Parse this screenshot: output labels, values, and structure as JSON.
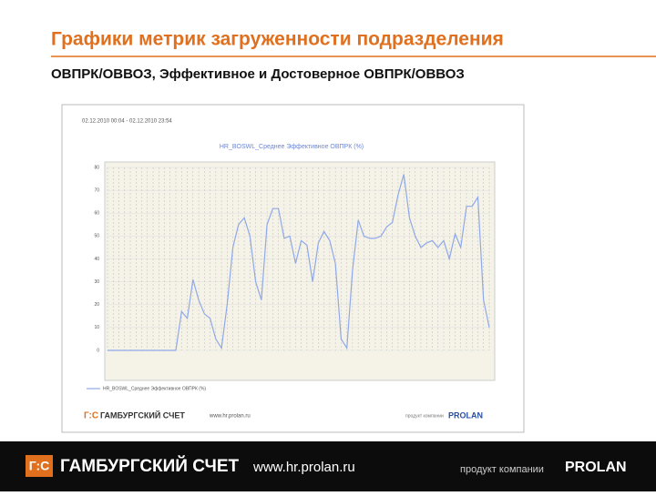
{
  "header": {
    "title": "Графики метрик загруженности подразделения",
    "subtitle": "ОВПРК/ОВВОЗ, Эффективное и Достоверное ОВПРК/ОВВОЗ"
  },
  "footer": {
    "brand": "ГАМБУРГСКИЙ СЧЕТ",
    "url": "www.hr.prolan.ru",
    "company_prefix": "продукт компании",
    "company": "PROLAN",
    "logo": "Г:С"
  },
  "chart_data": {
    "type": "line",
    "title": "HR_BOSWL_Среднее Эффективное ОВПРК (%)",
    "subtitle": "02.12.2010 00:04 - 02.12.2010 23:54",
    "categories": [
      null,
      null,
      null,
      null,
      null,
      null,
      null,
      null,
      null,
      null,
      null,
      null,
      null,
      null,
      null,
      null,
      null,
      null,
      null,
      null,
      null,
      null,
      null,
      null,
      null,
      null,
      null,
      null,
      null,
      null,
      null,
      null,
      null,
      null,
      null,
      null,
      null,
      null,
      null,
      null,
      null,
      null,
      null,
      null,
      null,
      null,
      null,
      null,
      null,
      null,
      null,
      null,
      null,
      null,
      null,
      null,
      null,
      null,
      null,
      null,
      null,
      null,
      null,
      null,
      null,
      null,
      null,
      null
    ],
    "series": [
      {
        "name": "HR_BOSWL_Среднее Эффективное ОВПРК (%)",
        "color": "#8fa8e8",
        "values": [
          0,
          0,
          0,
          0,
          0,
          0,
          0,
          0,
          0,
          0,
          0,
          0,
          0,
          17,
          14,
          31,
          22,
          16,
          14,
          5,
          1,
          20,
          45,
          55,
          58,
          50,
          30,
          22,
          55,
          62,
          62,
          49,
          50,
          38,
          48,
          46,
          30,
          47,
          52,
          48,
          38,
          5,
          1,
          35,
          57,
          50,
          49,
          49,
          50,
          54,
          56,
          68,
          77,
          58,
          50,
          45,
          47,
          48,
          45,
          48,
          40,
          51,
          45,
          63,
          63,
          67,
          22,
          10
        ]
      }
    ],
    "ylim": [
      0,
      80
    ],
    "yticks": [
      0,
      10,
      20,
      30,
      40,
      50,
      60,
      70,
      80
    ],
    "grid": true
  }
}
